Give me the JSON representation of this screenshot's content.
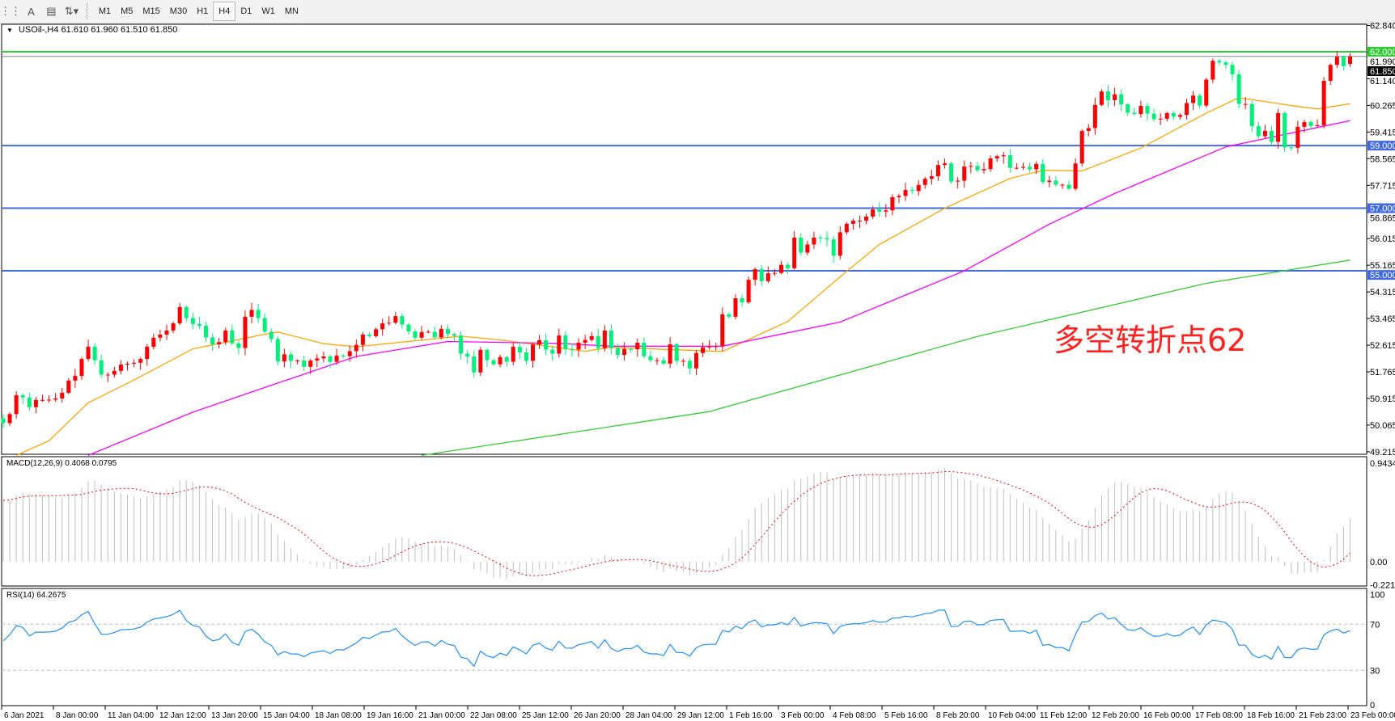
{
  "toolbar": {
    "icons": [
      "grid-icon",
      "text-icon",
      "text-label-icon",
      "arrows-icon"
    ],
    "timeframes": [
      "M1",
      "M5",
      "M15",
      "M30",
      "H1",
      "H4",
      "D1",
      "W1",
      "MN"
    ],
    "active_timeframe": "H4"
  },
  "header": {
    "symbol": "USOil-,H4",
    "ohlc": "61.610 61.960 61.510 61.850"
  },
  "annotation": "多空转折点62",
  "macd_label": "MACD(12,26,9) 0.4068 0.0795",
  "rsi_label": "RSI(14) 64.2675",
  "colors": {
    "up": "#ff0000",
    "down": "#00f07a",
    "ma_fast": "#ffa500",
    "ma_mid": "#ff00ff",
    "ma_slow": "#32cd32",
    "level_green": "#32cd32",
    "level_blue": "#4169e1",
    "rsi": "#1e90ff",
    "macd_signal": "#ff0000",
    "macd_hist": "#c0c0c0"
  },
  "chart_data": [
    {
      "type": "candlestick",
      "symbol": "USOil-",
      "timeframe": "H4",
      "last_bar": {
        "open": 61.61,
        "high": 61.96,
        "low": 61.51,
        "close": 61.85
      },
      "close": [
        50.13,
        50.42,
        51.02,
        50.95,
        50.64,
        50.87,
        50.87,
        50.88,
        50.92,
        51.1,
        51.49,
        51.64,
        52.18,
        52.57,
        52.14,
        51.68,
        51.68,
        51.8,
        52.0,
        52.03,
        52.06,
        52.18,
        52.57,
        52.86,
        52.96,
        53.09,
        53.32,
        53.84,
        53.49,
        53.3,
        53.24,
        52.87,
        52.65,
        52.72,
        53.09,
        52.68,
        52.53,
        53.53,
        53.75,
        53.49,
        53.05,
        52.82,
        52.1,
        52.33,
        52.12,
        52.13,
        51.93,
        52.13,
        52.2,
        52.26,
        52.09,
        52.29,
        52.27,
        52.43,
        52.63,
        52.96,
        52.91,
        53.13,
        53.32,
        53.34,
        53.55,
        53.28,
        53.06,
        52.86,
        53.04,
        53.05,
        52.87,
        53.14,
        52.98,
        52.93,
        52.35,
        52.26,
        51.75,
        52.47,
        52.14,
        52.01,
        52.24,
        52.09,
        52.57,
        52.39,
        52.12,
        52.64,
        52.78,
        52.48,
        52.35,
        52.93,
        52.49,
        52.48,
        52.7,
        52.79,
        52.91,
        52.53,
        53.09,
        52.53,
        52.31,
        52.5,
        52.49,
        52.7,
        52.27,
        52.14,
        52.14,
        52.03,
        52.65,
        52.12,
        52.12,
        51.88,
        52.37,
        52.55,
        52.58,
        52.59,
        53.61,
        53.53,
        54.12,
        53.99,
        54.71,
        55.05,
        54.67,
        54.92,
        54.93,
        55.19,
        55.08,
        56.06,
        55.58,
        55.84,
        56.06,
        56.04,
        56.0,
        55.48,
        56.23,
        56.5,
        56.6,
        56.6,
        56.73,
        56.96,
        56.89,
        56.93,
        57.35,
        57.39,
        57.58,
        57.55,
        57.74,
        57.94,
        58.02,
        58.38,
        58.43,
        57.85,
        57.88,
        58.33,
        58.35,
        58.21,
        58.25,
        58.59,
        58.66,
        58.69,
        58.29,
        58.29,
        58.32,
        58.24,
        58.41,
        57.84,
        57.88,
        57.75,
        57.75,
        57.62,
        58.43,
        59.47,
        59.56,
        60.3,
        60.73,
        60.45,
        60.64,
        60.32,
        60.05,
        60.01,
        60.27,
        60.02,
        59.84,
        59.86,
        60.04,
        59.92,
        59.98,
        60.36,
        60.6,
        60.28,
        61.11,
        61.71,
        61.66,
        61.58,
        61.28,
        60.33,
        60.33,
        59.62,
        59.3,
        59.47,
        59.12,
        60.04,
        58.94,
        58.93,
        59.6,
        59.75,
        59.63,
        59.65,
        61.07,
        61.58,
        61.84,
        61.54,
        61.85
      ],
      "moving_averages": [
        {
          "color": "#ffa500",
          "points": [
            [
              3,
              49.1
            ],
            [
              8,
              49.57
            ],
            [
              14,
              50.78
            ],
            [
              21,
              51.51
            ],
            [
              30,
              52.5
            ],
            [
              40,
              52.93
            ],
            [
              43,
              53.04
            ],
            [
              50,
              52.67
            ],
            [
              55,
              52.57
            ],
            [
              71,
              52.91
            ],
            [
              77,
              52.79
            ],
            [
              90,
              52.43
            ],
            [
              94,
              52.55
            ],
            [
              106,
              52.46
            ],
            [
              111,
              52.42
            ],
            [
              121,
              53.38
            ],
            [
              130,
              54.98
            ],
            [
              135,
              55.84
            ],
            [
              145,
              57.0
            ],
            [
              155,
              57.95
            ],
            [
              160,
              58.21
            ],
            [
              166,
              58.19
            ],
            [
              175,
              58.92
            ],
            [
              185,
              60.04
            ],
            [
              190,
              60.53
            ],
            [
              199,
              60.25
            ],
            [
              202,
              60.17
            ],
            [
              207,
              60.34
            ]
          ]
        },
        {
          "color": "#ff00ff",
          "points": [
            [
              14,
              49.1
            ],
            [
              30,
              50.48
            ],
            [
              42,
              51.34
            ],
            [
              55,
              52.26
            ],
            [
              69,
              52.74
            ],
            [
              86,
              52.68
            ],
            [
              94,
              52.59
            ],
            [
              111,
              52.59
            ],
            [
              129,
              53.36
            ],
            [
              148,
              55.0
            ],
            [
              161,
              56.49
            ],
            [
              171,
              57.47
            ],
            [
              188,
              58.96
            ],
            [
              207,
              59.8
            ]
          ]
        },
        {
          "color": "#32cd32",
          "points": [
            [
              65,
              49.1
            ],
            [
              109,
              50.5
            ],
            [
              150,
              52.9
            ],
            [
              185,
              54.6
            ],
            [
              207,
              55.34
            ]
          ]
        }
      ],
      "levels": [
        {
          "price": 62.0,
          "label": "62.000",
          "color": "#32cd32"
        },
        {
          "price": 59.0,
          "label": "59.000",
          "color": "#4169e1"
        },
        {
          "price": 57.0,
          "label": "57.000",
          "color": "#4169e1"
        },
        {
          "price": 55.0,
          "label": "55.000",
          "color": "#4169e1"
        }
      ],
      "current_price_label": "61.850",
      "y_ticks": [
        "62.840",
        "61.990",
        "61.140",
        "60.265",
        "59.415",
        "58.565",
        "57.715",
        "56.865",
        "56.015",
        "55.165",
        "54.315",
        "53.465",
        "52.615",
        "51.765",
        "50.915",
        "50.065",
        "49.215"
      ],
      "ylim": [
        49.215,
        62.84
      ],
      "x_ticks": [
        "6 Jan 2021",
        "8 Jan 00:00",
        "11 Jan 04:00",
        "12 Jan 12:00",
        "13 Jan 20:00",
        "15 Jan 04:00",
        "18 Jan 08:00",
        "19 Jan 16:00",
        "21 Jan 00:00",
        "22 Jan 08:00",
        "25 Jan 12:00",
        "26 Jan 20:00",
        "28 Jan 04:00",
        "29 Jan 12:00",
        "1 Feb 16:00",
        "3 Feb 00:00",
        "4 Feb 08:00",
        "5 Feb 16:00",
        "8 Feb 20:00",
        "10 Feb 04:00",
        "11 Feb 12:00",
        "12 Feb 20:00",
        "16 Feb 00:00",
        "17 Feb 08:00",
        "18 Feb 16:00",
        "21 Feb 23:00",
        "23 Feb 00:00"
      ]
    },
    {
      "type": "bar+line",
      "indicator": "MACD(12,26,9)",
      "main": 0.4068,
      "signal": 0.0795,
      "y_ticks": [
        "0.9434",
        "0.00",
        "-0.2213"
      ],
      "ylim": [
        -0.2213,
        0.9434
      ]
    },
    {
      "type": "line",
      "indicator": "RSI(14)",
      "value": 64.2675,
      "levels": [
        70,
        30
      ],
      "y_ticks": [
        "100",
        "70",
        "30",
        "0"
      ],
      "ylim": [
        0,
        100
      ]
    }
  ]
}
